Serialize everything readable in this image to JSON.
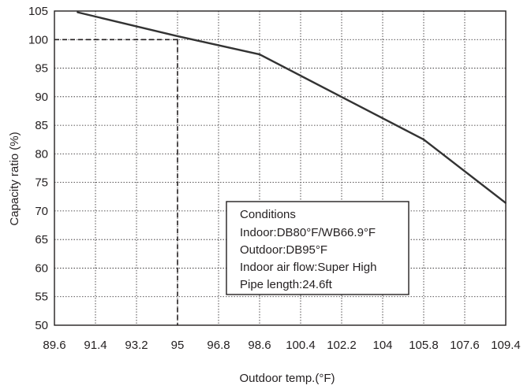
{
  "chart_data": {
    "type": "line",
    "title": "",
    "xlabel": "Outdoor temp.(°F)",
    "ylabel": "Capacity ratio (%)",
    "xlim": [
      89.6,
      109.4
    ],
    "ylim": [
      50,
      105
    ],
    "x_ticks": [
      "89.6",
      "91.4",
      "93.2",
      "95",
      "96.8",
      "98.6",
      "100.4",
      "102.2",
      "104",
      "105.8",
      "107.6",
      "109.4"
    ],
    "y_ticks": [
      "50",
      "55",
      "60",
      "65",
      "70",
      "75",
      "80",
      "85",
      "90",
      "95",
      "100",
      "105"
    ],
    "grid": true,
    "series": [
      {
        "x": [
          90.6,
          95.0,
          98.6,
          105.8,
          109.4
        ],
        "y": [
          104.8,
          100.6,
          97.4,
          82.5,
          71.4
        ]
      }
    ],
    "reference_lines": {
      "x": 95,
      "y": 100
    },
    "annotation_lines": [
      "Conditions",
      "Indoor:DB80°F/WB66.9°F",
      "Outdoor:DB95°F",
      "Indoor air flow:Super High",
      "Pipe length:24.6ft"
    ]
  }
}
